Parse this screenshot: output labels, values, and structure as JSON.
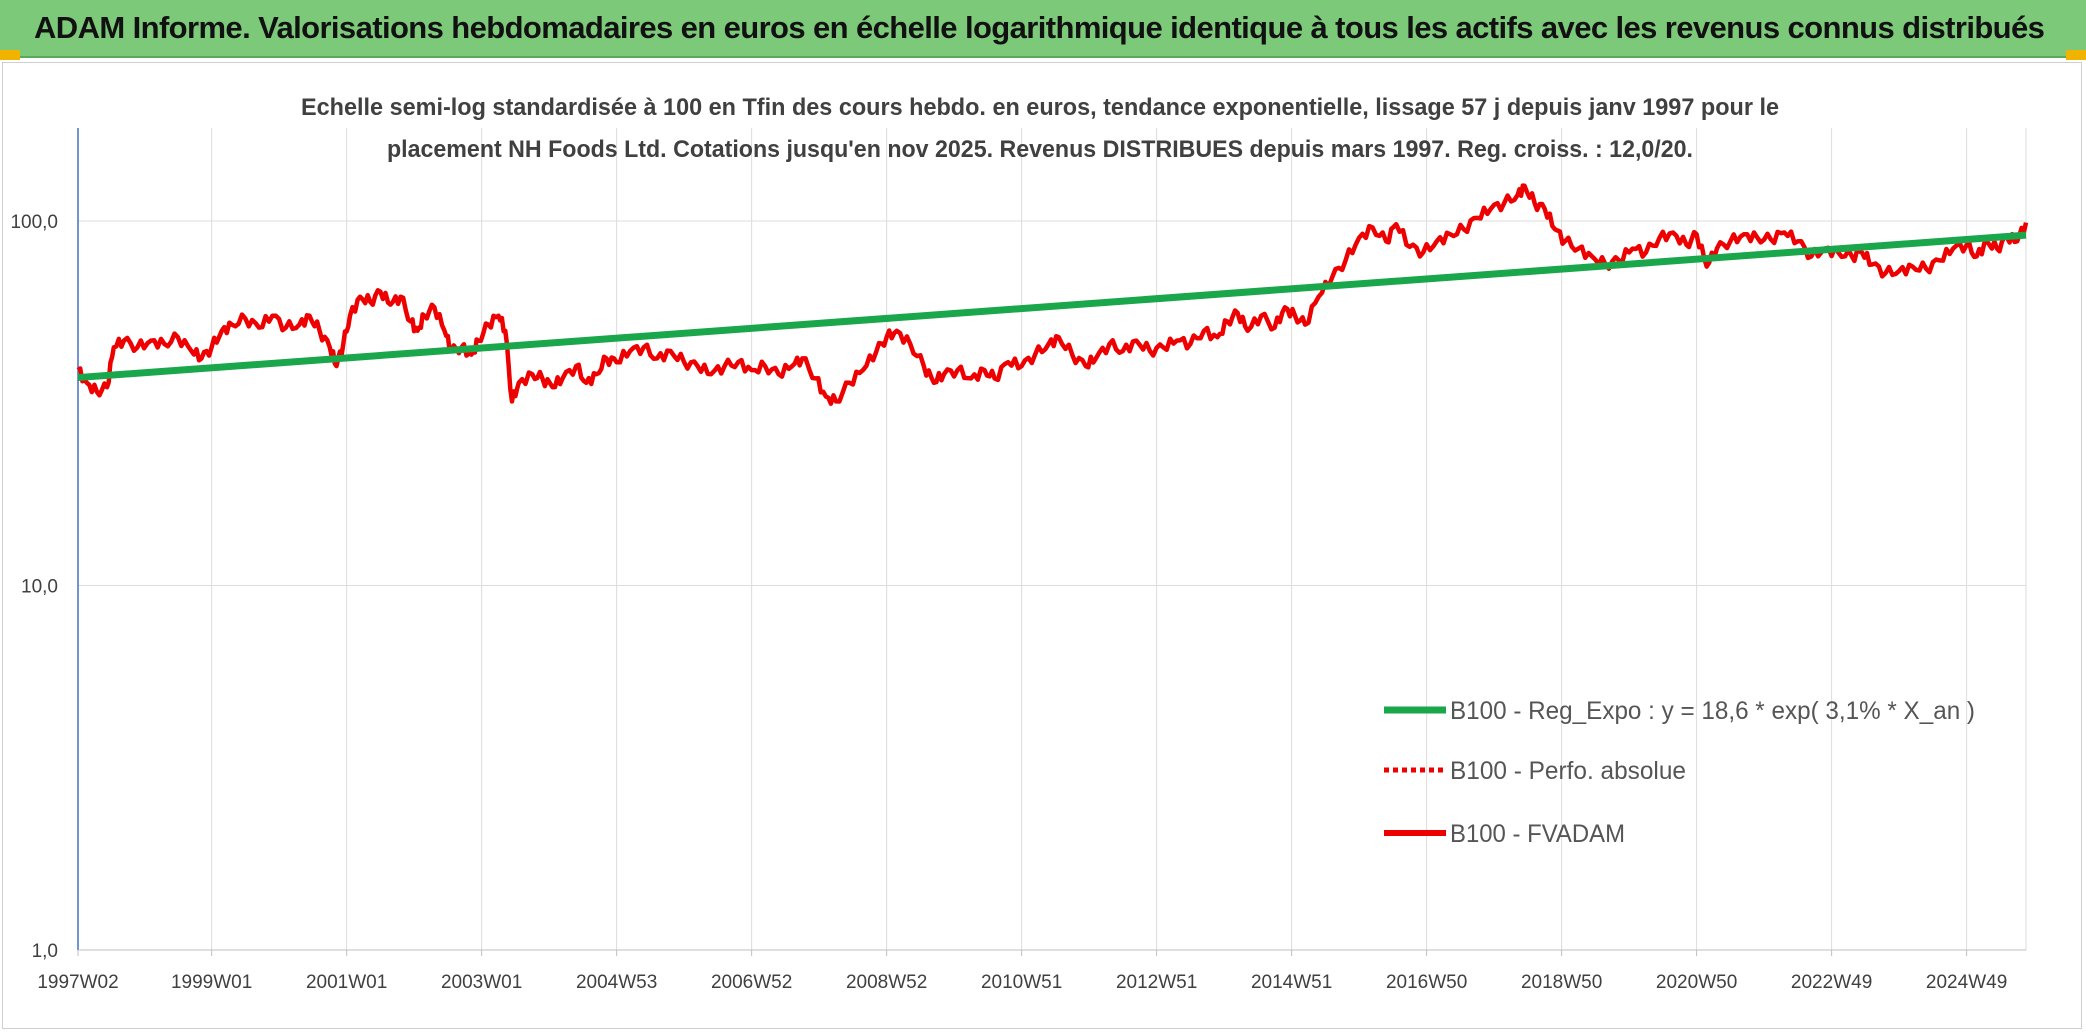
{
  "banner": {
    "title": "ADAM Informe. Valorisations hebdomadaires en euros en échelle logarithmique identique à tous les actifs avec les revenus connus distribués"
  },
  "colors": {
    "banner_bg": "#7dc97a",
    "trend": "#1aa64a",
    "fvadam": "#ee0000",
    "perfo": "#ee0000",
    "grid": "#dcdcdc",
    "axis": "#4472c4",
    "corner": "#f0b400"
  },
  "chart_data": {
    "type": "line",
    "title_line1": "Echelle semi-log standardisée à 100 en Tfin des cours hebdo. en euros, tendance exponentielle, lissage 57 j depuis janv 1997 pour le",
    "title_line2": "placement NH Foods Ltd. Cotations jusqu'en nov 2025. Revenus DISTRIBUES depuis mars 1997. Reg. croiss. : 12,0/20.",
    "y_scale": "log",
    "ylim": [
      1,
      180
    ],
    "y_ticks": [
      {
        "value": 1,
        "label": "1,0"
      },
      {
        "value": 10,
        "label": "10,0"
      },
      {
        "value": 100,
        "label": "100,0"
      }
    ],
    "x_range": [
      1997.02,
      2025.88
    ],
    "x_ticks": [
      {
        "label": "1997W02",
        "year": 1997.02
      },
      {
        "label": "1999W01",
        "year": 1999.0
      },
      {
        "label": "2001W01",
        "year": 2001.0
      },
      {
        "label": "2003W01",
        "year": 2003.0
      },
      {
        "label": "2004W53",
        "year": 2005.0
      },
      {
        "label": "2006W52",
        "year": 2007.0
      },
      {
        "label": "2008W52",
        "year": 2009.0
      },
      {
        "label": "2010W51",
        "year": 2011.0
      },
      {
        "label": "2012W51",
        "year": 2013.0
      },
      {
        "label": "2014W51",
        "year": 2015.0
      },
      {
        "label": "2016W50",
        "year": 2017.0
      },
      {
        "label": "2018W50",
        "year": 2019.0
      },
      {
        "label": "2020W50",
        "year": 2021.0
      },
      {
        "label": "2022W49",
        "year": 2023.0
      },
      {
        "label": "2024W49",
        "year": 2025.0
      }
    ],
    "grid": true,
    "legend_position": "bottom-right",
    "series": [
      {
        "name": "B100 - Reg_Expo : y = 18,6 * exp( 3,1% *  X_an )",
        "style": "solid-thick",
        "color": "#1aa64a",
        "points": [
          [
            1997.02,
            37.2
          ],
          [
            2025.88,
            91.5
          ]
        ]
      },
      {
        "name": "B100 - Perfo. absolue",
        "style": "dotted",
        "color": "#ee0000",
        "points": []
      },
      {
        "name": "B100 - FVADAM",
        "style": "solid",
        "color": "#ee0000",
        "points": [
          [
            1997.02,
            39
          ],
          [
            1997.15,
            36
          ],
          [
            1997.3,
            34
          ],
          [
            1997.45,
            35
          ],
          [
            1997.55,
            45
          ],
          [
            1997.7,
            47
          ],
          [
            1997.9,
            45
          ],
          [
            1998.1,
            47
          ],
          [
            1998.3,
            46
          ],
          [
            1998.5,
            48
          ],
          [
            1998.7,
            44
          ],
          [
            1998.85,
            42
          ],
          [
            1999.0,
            45
          ],
          [
            1999.15,
            50
          ],
          [
            1999.3,
            52
          ],
          [
            1999.5,
            54
          ],
          [
            1999.7,
            51
          ],
          [
            1999.9,
            55
          ],
          [
            2000.1,
            51
          ],
          [
            2000.3,
            52
          ],
          [
            2000.45,
            55
          ],
          [
            2000.6,
            50
          ],
          [
            2000.75,
            45
          ],
          [
            2000.85,
            40
          ],
          [
            2000.95,
            46
          ],
          [
            2001.05,
            55
          ],
          [
            2001.2,
            62
          ],
          [
            2001.35,
            60
          ],
          [
            2001.5,
            64
          ],
          [
            2001.65,
            59
          ],
          [
            2001.8,
            62
          ],
          [
            2001.95,
            53
          ],
          [
            2002.05,
            50
          ],
          [
            2002.15,
            55
          ],
          [
            2002.3,
            58
          ],
          [
            2002.45,
            50
          ],
          [
            2002.55,
            44
          ],
          [
            2002.7,
            45
          ],
          [
            2002.85,
            43
          ],
          [
            2002.95,
            47
          ],
          [
            2003.1,
            52
          ],
          [
            2003.25,
            55
          ],
          [
            2003.35,
            50
          ],
          [
            2003.45,
            32
          ],
          [
            2003.55,
            36
          ],
          [
            2003.75,
            38
          ],
          [
            2003.9,
            37
          ],
          [
            2004.05,
            35
          ],
          [
            2004.2,
            37
          ],
          [
            2004.4,
            40
          ],
          [
            2004.55,
            36
          ],
          [
            2004.7,
            38
          ],
          [
            2004.85,
            42
          ],
          [
            2005.0,
            41
          ],
          [
            2005.2,
            44
          ],
          [
            2005.4,
            45
          ],
          [
            2005.6,
            42
          ],
          [
            2005.8,
            44
          ],
          [
            2006.0,
            41
          ],
          [
            2006.2,
            40
          ],
          [
            2006.4,
            38
          ],
          [
            2006.6,
            40
          ],
          [
            2006.8,
            41
          ],
          [
            2007.0,
            39
          ],
          [
            2007.2,
            40
          ],
          [
            2007.4,
            38
          ],
          [
            2007.6,
            40
          ],
          [
            2007.75,
            42
          ],
          [
            2007.95,
            37
          ],
          [
            2008.1,
            33
          ],
          [
            2008.25,
            32
          ],
          [
            2008.45,
            36
          ],
          [
            2008.65,
            39
          ],
          [
            2008.85,
            44
          ],
          [
            2009.0,
            48
          ],
          [
            2009.15,
            50
          ],
          [
            2009.35,
            46
          ],
          [
            2009.55,
            40
          ],
          [
            2009.7,
            36
          ],
          [
            2009.85,
            38
          ],
          [
            2010.05,
            39
          ],
          [
            2010.25,
            37
          ],
          [
            2010.45,
            39
          ],
          [
            2010.6,
            37
          ],
          [
            2010.8,
            41
          ],
          [
            2011.0,
            40
          ],
          [
            2011.2,
            43
          ],
          [
            2011.4,
            46
          ],
          [
            2011.55,
            48
          ],
          [
            2011.75,
            43
          ],
          [
            2011.95,
            40
          ],
          [
            2012.1,
            42
          ],
          [
            2012.3,
            46
          ],
          [
            2012.5,
            44
          ],
          [
            2012.7,
            47
          ],
          [
            2012.9,
            44
          ],
          [
            2013.1,
            45
          ],
          [
            2013.3,
            47
          ],
          [
            2013.5,
            46
          ],
          [
            2013.7,
            50
          ],
          [
            2013.9,
            48
          ],
          [
            2014.05,
            53
          ],
          [
            2014.2,
            56
          ],
          [
            2014.35,
            50
          ],
          [
            2014.55,
            55
          ],
          [
            2014.75,
            51
          ],
          [
            2014.9,
            58
          ],
          [
            2015.05,
            55
          ],
          [
            2015.2,
            52
          ],
          [
            2015.4,
            62
          ],
          [
            2015.6,
            70
          ],
          [
            2015.8,
            78
          ],
          [
            2016.0,
            90
          ],
          [
            2016.2,
            96
          ],
          [
            2016.4,
            88
          ],
          [
            2016.55,
            98
          ],
          [
            2016.75,
            85
          ],
          [
            2016.95,
            82
          ],
          [
            2017.15,
            88
          ],
          [
            2017.35,
            92
          ],
          [
            2017.55,
            95
          ],
          [
            2017.75,
            102
          ],
          [
            2017.95,
            108
          ],
          [
            2018.15,
            112
          ],
          [
            2018.35,
            118
          ],
          [
            2018.45,
            125
          ],
          [
            2018.6,
            112
          ],
          [
            2018.75,
            108
          ],
          [
            2018.9,
            95
          ],
          [
            2019.05,
            88
          ],
          [
            2019.25,
            84
          ],
          [
            2019.45,
            80
          ],
          [
            2019.65,
            76
          ],
          [
            2019.85,
            78
          ],
          [
            2020.05,
            84
          ],
          [
            2020.25,
            82
          ],
          [
            2020.45,
            90
          ],
          [
            2020.65,
            93
          ],
          [
            2020.85,
            86
          ],
          [
            2021.0,
            92
          ],
          [
            2021.15,
            75
          ],
          [
            2021.3,
            84
          ],
          [
            2021.5,
            88
          ],
          [
            2021.7,
            92
          ],
          [
            2021.9,
            90
          ],
          [
            2022.1,
            89
          ],
          [
            2022.3,
            93
          ],
          [
            2022.5,
            88
          ],
          [
            2022.7,
            80
          ],
          [
            2022.9,
            84
          ],
          [
            2023.1,
            82
          ],
          [
            2023.3,
            80
          ],
          [
            2023.45,
            82
          ],
          [
            2023.6,
            76
          ],
          [
            2023.8,
            72
          ],
          [
            2024.0,
            73
          ],
          [
            2024.2,
            75
          ],
          [
            2024.4,
            74
          ],
          [
            2024.6,
            78
          ],
          [
            2024.8,
            84
          ],
          [
            2025.0,
            86
          ],
          [
            2025.15,
            80
          ],
          [
            2025.3,
            88
          ],
          [
            2025.45,
            84
          ],
          [
            2025.6,
            90
          ],
          [
            2025.75,
            88
          ],
          [
            2025.88,
            99
          ]
        ]
      }
    ]
  }
}
